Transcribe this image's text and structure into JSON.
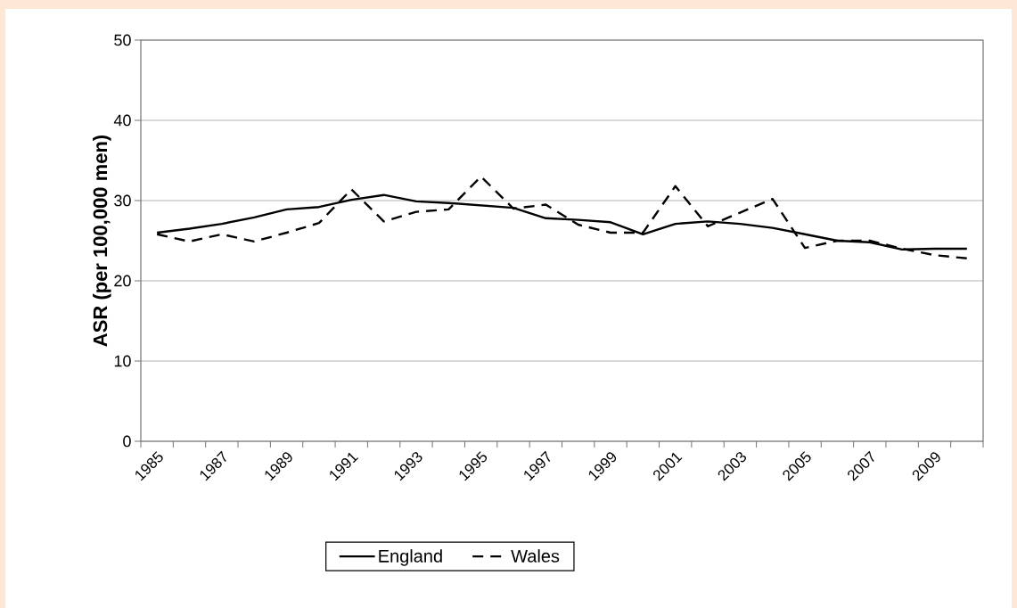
{
  "chart_data": {
    "type": "line",
    "ylabel": "ASR (per 100,000 men)",
    "categories": [
      "1985",
      null,
      "1987",
      null,
      "1989",
      null,
      "1991",
      null,
      "1993",
      null,
      "1995",
      null,
      "1997",
      null,
      "1999",
      null,
      "2001",
      null,
      "2003",
      null,
      "2005",
      null,
      "2007",
      null,
      "2009",
      null
    ],
    "series": [
      {
        "name": "England",
        "color": "#000000",
        "line_style": "solid",
        "values": [
          26,
          26.5,
          27.1,
          27.9,
          28.9,
          29.2,
          30.1,
          30.7,
          29.9,
          29.7,
          29.4,
          29.1,
          27.8,
          27.6,
          27.3,
          25.8,
          27.1,
          27.4,
          27.1,
          26.6,
          25.8,
          25,
          24.8,
          23.9,
          24,
          24
        ]
      },
      {
        "name": "Wales",
        "color": "#000000",
        "line_style": "dashed",
        "values": [
          25.8,
          24.9,
          25.8,
          24.9,
          26,
          27.2,
          31.4,
          27.4,
          28.6,
          28.9,
          33,
          29,
          29.5,
          27,
          26,
          26,
          31.8,
          26.8,
          28.5,
          30.2,
          24.1,
          25,
          25,
          24,
          23.2,
          22.8
        ]
      }
    ],
    "ylim": [
      0,
      50
    ],
    "yticks": [
      0,
      10,
      20,
      30,
      40,
      50
    ],
    "grid": "y",
    "legend": "bottom",
    "marker": "none"
  }
}
